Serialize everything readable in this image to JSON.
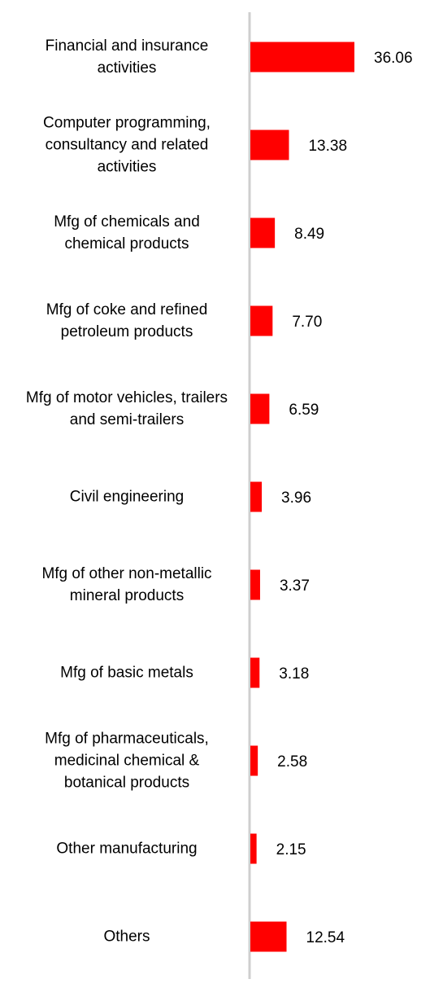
{
  "chart_data": {
    "type": "hbar",
    "categories": [
      "Financial and insurance activities",
      "Computer programming, consultancy and related activities",
      "Mfg of chemicals and chemical products",
      "Mfg of coke and refined petroleum products",
      "Mfg of motor vehicles, trailers and semi-trailers",
      "Civil engineering",
      "Mfg of other non-metallic mineral products",
      "Mfg of basic metals",
      "Mfg of pharmaceuticals, medicinal chemical & botanical products",
      "Other manufacturing",
      "Others"
    ],
    "values": [
      36.06,
      13.38,
      8.49,
      7.7,
      6.59,
      3.96,
      3.37,
      3.18,
      2.58,
      2.15,
      12.54
    ],
    "value_labels": [
      "36.06",
      "13.38",
      "8.49",
      "7.70",
      "6.59",
      "3.96",
      "3.37",
      "3.18",
      "2.58",
      "2.15",
      "12.54"
    ],
    "color": "#ff0000"
  }
}
